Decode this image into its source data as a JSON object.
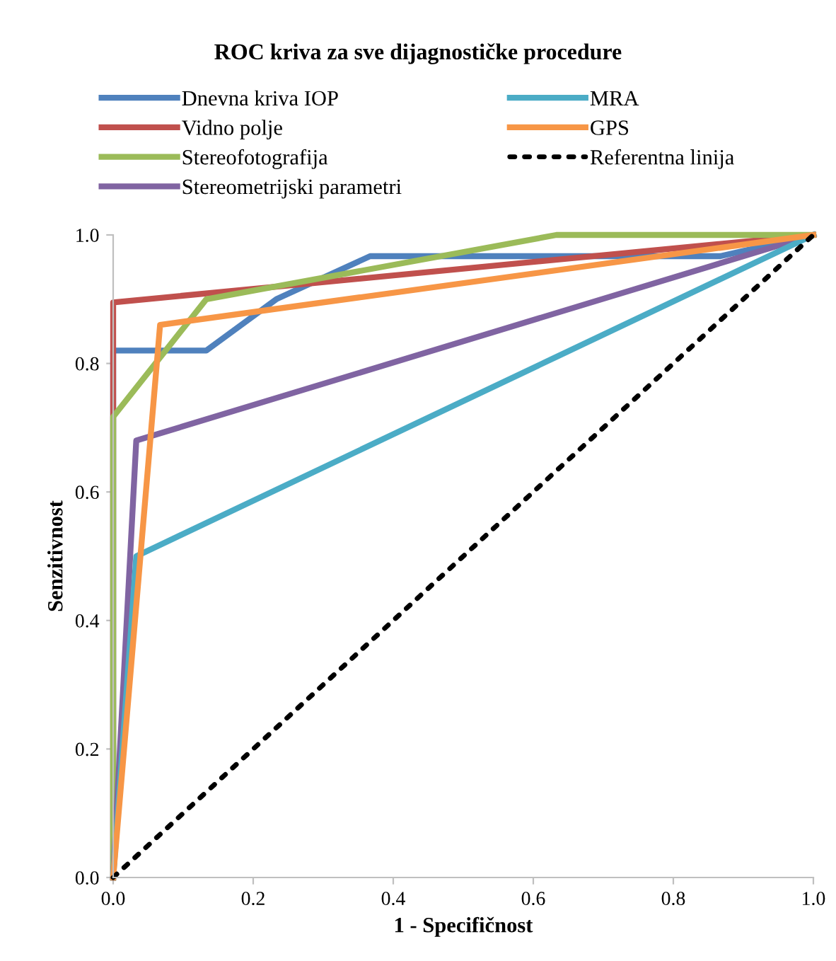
{
  "chart_data": {
    "type": "line",
    "title": "ROC kriva za sve dijagnostičke procedure",
    "xlabel": "1 - Specifičnost",
    "ylabel": "Senzitivnost",
    "xlim": [
      0,
      1
    ],
    "ylim": [
      0,
      1
    ],
    "xticks": [
      {
        "value": 0,
        "label": "0.0"
      },
      {
        "value": 0.2,
        "label": "0.2"
      },
      {
        "value": 0.4,
        "label": "0.4"
      },
      {
        "value": 0.6,
        "label": "0.6"
      },
      {
        "value": 0.8,
        "label": "0.8"
      },
      {
        "value": 1,
        "label": "1.0"
      }
    ],
    "yticks": [
      {
        "value": 0,
        "label": "0.0"
      },
      {
        "value": 0.2,
        "label": "0.2"
      },
      {
        "value": 0.4,
        "label": "0.4"
      },
      {
        "value": 0.6,
        "label": "0.6"
      },
      {
        "value": 0.8,
        "label": "0.8"
      },
      {
        "value": 1,
        "label": "1.0"
      }
    ],
    "grid": false,
    "legend": "top",
    "marker": "none",
    "series": [
      {
        "name": "Dnevna kriva IOP",
        "color": "#4f81bd",
        "x": [
          0,
          0,
          0.133,
          0.233,
          0.367,
          0.867,
          1
        ],
        "values": [
          0,
          0.82,
          0.82,
          0.9,
          0.967,
          0.967,
          1
        ]
      },
      {
        "name": "Vidno polje",
        "color": "#c0504d",
        "x": [
          0,
          0,
          0,
          1
        ],
        "values": [
          0,
          0.72,
          0.895,
          1
        ]
      },
      {
        "name": "Stereofotografija",
        "color": "#9bbb59",
        "x": [
          0,
          0,
          0.133,
          0.633,
          1
        ],
        "values": [
          0,
          0.717,
          0.9,
          1,
          1
        ]
      },
      {
        "name": "Stereometrijski parametri",
        "color": "#8064a2",
        "x": [
          0,
          0.033,
          1
        ],
        "values": [
          0,
          0.68,
          1
        ]
      },
      {
        "name": "MRA",
        "color": "#4bacc6",
        "x": [
          0,
          0.033,
          1
        ],
        "values": [
          0,
          0.5,
          1
        ]
      },
      {
        "name": "GPS",
        "color": "#f79646",
        "x": [
          0,
          0.067,
          1
        ],
        "values": [
          0,
          0.86,
          1
        ]
      },
      {
        "name": "Referentna linija",
        "color": "#000000",
        "line_style": "dotted",
        "x": [
          0,
          1
        ],
        "values": [
          0,
          1
        ]
      }
    ]
  }
}
